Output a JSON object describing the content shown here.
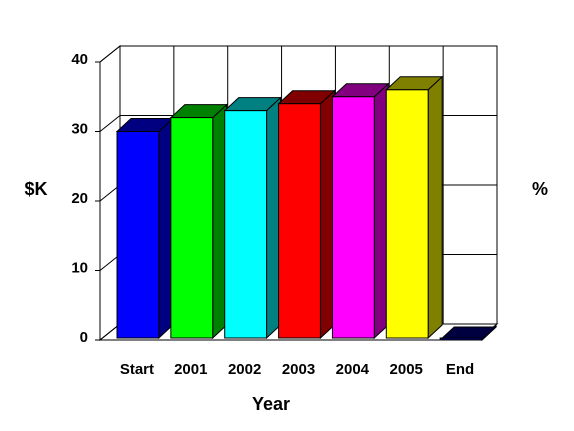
{
  "chart_data": {
    "type": "bar3d",
    "categories": [
      "Start",
      "2001",
      "2002",
      "2003",
      "2004",
      "2005",
      "End"
    ],
    "values": [
      30,
      32,
      33,
      34,
      35,
      36,
      0
    ],
    "colors": [
      "#0000ff",
      "#00ff00",
      "#00ffff",
      "#ff0000",
      "#ff00ff",
      "#ffff00",
      "#000080"
    ],
    "ylim": [
      0,
      40
    ],
    "yticks": [
      0,
      10,
      20,
      30,
      40
    ],
    "grid": true,
    "y_label": "$K",
    "y2_label": "%",
    "x_label": "Year"
  }
}
